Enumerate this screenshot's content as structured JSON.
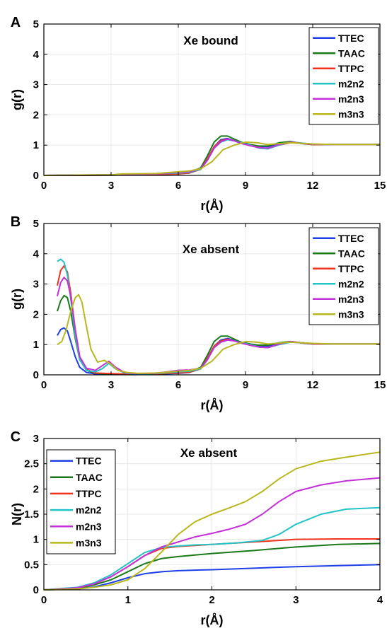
{
  "figure": {
    "colors": {
      "TTEC": "#1f3fe6",
      "TAAC": "#1a7a1a",
      "TTPC": "#f0321e",
      "m2n2": "#21c4c4",
      "m2n3": "#c430d8",
      "m3n3": "#b8b81e"
    }
  },
  "chart_data": [
    {
      "panel_label": "A",
      "type": "line",
      "title": "Xe bound",
      "xlabel": "r(Å)",
      "ylabel": "g(r)",
      "xlim": [
        0,
        15
      ],
      "ylim": [
        0,
        5
      ],
      "xticks": [
        0,
        3,
        6,
        9,
        12,
        15
      ],
      "yticks": [
        0,
        1,
        2,
        3,
        4,
        5
      ],
      "grid": true,
      "legend_position": "top-right",
      "series": [
        {
          "name": "TTEC",
          "x": [
            0,
            3,
            5,
            6,
            6.5,
            7,
            7.3,
            7.6,
            7.9,
            8.2,
            8.5,
            8.8,
            9.2,
            9.6,
            10,
            10.5,
            11,
            11.5,
            12,
            13,
            15
          ],
          "y": [
            0,
            0.01,
            0.03,
            0.05,
            0.08,
            0.2,
            0.55,
            0.95,
            1.18,
            1.22,
            1.15,
            1.08,
            1.02,
            0.96,
            0.95,
            1.05,
            1.12,
            1.05,
            1.02,
            1.02,
            1.02
          ]
        },
        {
          "name": "TAAC",
          "x": [
            0,
            3,
            5,
            6,
            6.5,
            7,
            7.3,
            7.6,
            7.9,
            8.2,
            8.5,
            8.8,
            9.2,
            9.6,
            10,
            10.5,
            11,
            11.5,
            12,
            13,
            15
          ],
          "y": [
            0,
            0.01,
            0.03,
            0.06,
            0.1,
            0.25,
            0.65,
            1.1,
            1.3,
            1.3,
            1.2,
            1.1,
            1.02,
            0.97,
            0.97,
            1.08,
            1.12,
            1.06,
            1.02,
            1.02,
            1.02
          ]
        },
        {
          "name": "TTPC",
          "x": [
            0,
            3,
            5,
            6,
            6.5,
            7,
            7.3,
            7.6,
            7.9,
            8.2,
            8.5,
            8.8,
            9.2,
            9.6,
            10,
            10.5,
            11,
            11.5,
            12,
            13,
            15
          ],
          "y": [
            0,
            0.01,
            0.03,
            0.05,
            0.08,
            0.2,
            0.55,
            0.95,
            1.15,
            1.2,
            1.14,
            1.08,
            1.0,
            0.92,
            0.88,
            1.0,
            1.08,
            1.06,
            1.02,
            1.02,
            1.02
          ]
        },
        {
          "name": "m2n2",
          "x": [
            0,
            3,
            5,
            6,
            6.5,
            7,
            7.3,
            7.6,
            7.9,
            8.2,
            8.5,
            8.8,
            9.2,
            9.6,
            10,
            10.5,
            11,
            11.5,
            12,
            13,
            15
          ],
          "y": [
            0,
            0.02,
            0.05,
            0.08,
            0.1,
            0.2,
            0.5,
            0.9,
            1.1,
            1.18,
            1.14,
            1.08,
            1.0,
            0.9,
            0.88,
            1.0,
            1.1,
            1.07,
            1.03,
            1.02,
            1.02
          ]
        },
        {
          "name": "m2n3",
          "x": [
            0,
            3,
            5,
            6,
            6.5,
            7,
            7.3,
            7.6,
            7.9,
            8.2,
            8.5,
            8.8,
            9.2,
            9.6,
            10,
            10.5,
            11,
            11.5,
            12,
            13,
            15
          ],
          "y": [
            0,
            0.02,
            0.05,
            0.1,
            0.12,
            0.22,
            0.5,
            0.9,
            1.12,
            1.2,
            1.14,
            1.06,
            0.98,
            0.92,
            0.9,
            1.02,
            1.1,
            1.06,
            1.03,
            1.02,
            1.02
          ]
        },
        {
          "name": "m3n3",
          "x": [
            0,
            3,
            3.5,
            5,
            6,
            6.5,
            7,
            7.5,
            8,
            8.5,
            9,
            9.5,
            10,
            10.5,
            11,
            12,
            13,
            15
          ],
          "y": [
            0,
            0.02,
            0.05,
            0.06,
            0.12,
            0.15,
            0.22,
            0.45,
            0.85,
            1.0,
            1.1,
            1.08,
            1.02,
            1.05,
            1.08,
            1.04,
            1.02,
            1.02
          ]
        }
      ]
    },
    {
      "panel_label": "B",
      "type": "line",
      "title": "Xe absent",
      "xlabel": "r(Å)",
      "ylabel": "g(r)",
      "xlim": [
        0,
        15
      ],
      "ylim": [
        0,
        5
      ],
      "xticks": [
        0,
        3,
        6,
        9,
        12,
        15
      ],
      "yticks": [
        0,
        1,
        2,
        3,
        4,
        5
      ],
      "grid": true,
      "legend_position": "top-right",
      "series": [
        {
          "name": "TTEC",
          "x": [
            0.6,
            0.75,
            0.9,
            1.05,
            1.2,
            1.4,
            1.6,
            1.9,
            2.3,
            3,
            4,
            5,
            6,
            6.5,
            7,
            7.3,
            7.6,
            7.9,
            8.2,
            8.5,
            8.8,
            9.2,
            9.6,
            10,
            10.5,
            11,
            11.5,
            12,
            13,
            15
          ],
          "y": [
            1.3,
            1.5,
            1.55,
            1.45,
            1.1,
            0.6,
            0.25,
            0.08,
            0.03,
            0.02,
            0.01,
            0.02,
            0.05,
            0.08,
            0.2,
            0.55,
            0.95,
            1.15,
            1.2,
            1.14,
            1.08,
            1.02,
            0.96,
            0.95,
            1.04,
            1.1,
            1.05,
            1.02,
            1.02,
            1.02
          ]
        },
        {
          "name": "TAAC",
          "x": [
            0.6,
            0.75,
            0.9,
            1.05,
            1.2,
            1.4,
            1.6,
            1.9,
            2.3,
            3,
            4,
            5,
            6,
            6.5,
            7,
            7.3,
            7.6,
            7.9,
            8.2,
            8.5,
            8.8,
            9.2,
            9.6,
            10,
            10.5,
            11,
            11.5,
            12,
            13,
            15
          ],
          "y": [
            2.1,
            2.45,
            2.62,
            2.55,
            2.1,
            1.2,
            0.5,
            0.15,
            0.05,
            0.03,
            0.02,
            0.03,
            0.07,
            0.1,
            0.25,
            0.65,
            1.1,
            1.28,
            1.28,
            1.18,
            1.08,
            1.02,
            0.98,
            0.98,
            1.06,
            1.1,
            1.06,
            1.03,
            1.02,
            1.02
          ]
        },
        {
          "name": "TTPC",
          "x": [
            0.6,
            0.75,
            0.9,
            1.05,
            1.2,
            1.4,
            1.6,
            1.9,
            2.3,
            3,
            4,
            5,
            6,
            6.5,
            7,
            7.3,
            7.6,
            7.9,
            8.2,
            8.5,
            8.8,
            9.2,
            9.6,
            10,
            10.5,
            11,
            11.5,
            12,
            13,
            15
          ],
          "y": [
            2.95,
            3.45,
            3.6,
            3.4,
            2.7,
            1.5,
            0.6,
            0.18,
            0.06,
            0.04,
            0.02,
            0.03,
            0.06,
            0.09,
            0.2,
            0.55,
            0.95,
            1.12,
            1.18,
            1.12,
            1.06,
            0.98,
            0.92,
            0.9,
            1.0,
            1.08,
            1.06,
            1.02,
            1.02,
            1.02
          ]
        },
        {
          "name": "m2n2",
          "x": [
            0.6,
            0.75,
            0.9,
            1.05,
            1.2,
            1.4,
            1.6,
            1.9,
            2.3,
            2.6,
            2.9,
            3.2,
            3.6,
            4,
            5,
            6,
            6.5,
            7,
            7.3,
            7.6,
            7.9,
            8.2,
            8.5,
            8.8,
            9.2,
            9.6,
            10,
            10.5,
            11,
            11.5,
            12,
            13,
            15
          ],
          "y": [
            3.75,
            3.82,
            3.72,
            3.3,
            2.5,
            1.3,
            0.5,
            0.15,
            0.1,
            0.2,
            0.38,
            0.2,
            0.06,
            0.03,
            0.04,
            0.1,
            0.12,
            0.2,
            0.5,
            0.9,
            1.08,
            1.15,
            1.12,
            1.06,
            1.0,
            0.92,
            0.9,
            1.0,
            1.08,
            1.06,
            1.03,
            1.02,
            1.02
          ]
        },
        {
          "name": "m2n3",
          "x": [
            0.6,
            0.75,
            0.9,
            1.05,
            1.2,
            1.4,
            1.6,
            1.9,
            2.3,
            2.6,
            2.9,
            3.2,
            3.6,
            4,
            5,
            6,
            6.5,
            7,
            7.3,
            7.6,
            7.9,
            8.2,
            8.5,
            8.8,
            9.2,
            9.6,
            10,
            10.5,
            11,
            11.5,
            12,
            13,
            15
          ],
          "y": [
            2.6,
            3.05,
            3.22,
            3.1,
            2.6,
            1.5,
            0.6,
            0.22,
            0.15,
            0.3,
            0.45,
            0.25,
            0.08,
            0.04,
            0.05,
            0.15,
            0.16,
            0.22,
            0.5,
            0.9,
            1.08,
            1.15,
            1.12,
            1.05,
            0.98,
            0.92,
            0.9,
            1.02,
            1.1,
            1.06,
            1.03,
            1.02,
            1.02
          ]
        },
        {
          "name": "m3n3",
          "x": [
            0.6,
            0.8,
            1.0,
            1.2,
            1.4,
            1.55,
            1.7,
            1.9,
            2.1,
            2.4,
            2.7,
            3.0,
            3.3,
            3.7,
            4.2,
            5,
            6,
            6.5,
            7,
            7.5,
            8,
            8.5,
            9,
            9.5,
            10,
            10.5,
            11,
            12,
            13,
            15
          ],
          "y": [
            1.0,
            1.1,
            1.5,
            2.1,
            2.55,
            2.65,
            2.4,
            1.6,
            0.85,
            0.42,
            0.48,
            0.35,
            0.15,
            0.08,
            0.05,
            0.06,
            0.12,
            0.15,
            0.22,
            0.45,
            0.85,
            1.0,
            1.1,
            1.08,
            1.02,
            1.05,
            1.08,
            1.04,
            1.02,
            1.02
          ]
        }
      ]
    },
    {
      "panel_label": "C",
      "type": "line",
      "title": "Xe absent",
      "xlabel": "r(Å)",
      "ylabel": "N(r)",
      "xlim": [
        0,
        4
      ],
      "ylim": [
        0,
        3
      ],
      "xticks": [
        0,
        1,
        2,
        3,
        4
      ],
      "yticks": [
        0,
        0.5,
        1,
        1.5,
        2,
        2.5,
        3
      ],
      "grid": true,
      "legend_position": "top-left",
      "series": [
        {
          "name": "TTEC",
          "x": [
            0,
            0.4,
            0.6,
            0.8,
            1.0,
            1.2,
            1.4,
            1.6,
            1.8,
            2.0,
            2.5,
            3.0,
            3.5,
            4.0
          ],
          "y": [
            0,
            0.02,
            0.06,
            0.14,
            0.24,
            0.32,
            0.36,
            0.38,
            0.39,
            0.4,
            0.43,
            0.46,
            0.48,
            0.5
          ]
        },
        {
          "name": "TAAC",
          "x": [
            0,
            0.4,
            0.6,
            0.8,
            1.0,
            1.2,
            1.4,
            1.6,
            1.8,
            2.0,
            2.5,
            3.0,
            3.5,
            4.0
          ],
          "y": [
            0,
            0.03,
            0.1,
            0.2,
            0.36,
            0.52,
            0.62,
            0.66,
            0.69,
            0.72,
            0.78,
            0.85,
            0.9,
            0.92
          ]
        },
        {
          "name": "TTPC",
          "x": [
            0,
            0.4,
            0.6,
            0.8,
            1.0,
            1.2,
            1.4,
            1.6,
            1.8,
            2.0,
            2.5,
            3.0,
            3.5,
            4.0
          ],
          "y": [
            0,
            0.04,
            0.12,
            0.26,
            0.46,
            0.68,
            0.82,
            0.86,
            0.88,
            0.9,
            0.95,
            1.0,
            1.01,
            1.01
          ]
        },
        {
          "name": "m2n2",
          "x": [
            0,
            0.4,
            0.6,
            0.8,
            1.0,
            1.2,
            1.4,
            1.6,
            1.8,
            2.0,
            2.3,
            2.6,
            2.8,
            3.0,
            3.3,
            3.6,
            4.0
          ],
          "y": [
            0,
            0.05,
            0.14,
            0.3,
            0.52,
            0.74,
            0.84,
            0.87,
            0.89,
            0.9,
            0.93,
            0.98,
            1.1,
            1.3,
            1.5,
            1.6,
            1.63
          ]
        },
        {
          "name": "m2n3",
          "x": [
            0,
            0.4,
            0.6,
            0.8,
            1.0,
            1.2,
            1.4,
            1.6,
            1.8,
            2.0,
            2.2,
            2.4,
            2.6,
            2.8,
            3.0,
            3.3,
            3.6,
            4.0
          ],
          "y": [
            0,
            0.04,
            0.12,
            0.26,
            0.46,
            0.68,
            0.85,
            0.95,
            1.05,
            1.12,
            1.2,
            1.3,
            1.5,
            1.75,
            1.95,
            2.08,
            2.16,
            2.22
          ]
        },
        {
          "name": "m3n3",
          "x": [
            0,
            0.4,
            0.6,
            0.8,
            1.0,
            1.2,
            1.4,
            1.6,
            1.8,
            2.0,
            2.2,
            2.4,
            2.6,
            2.8,
            3.0,
            3.3,
            3.6,
            4.0
          ],
          "y": [
            0,
            0.02,
            0.05,
            0.1,
            0.2,
            0.42,
            0.75,
            1.1,
            1.35,
            1.5,
            1.62,
            1.75,
            1.95,
            2.2,
            2.4,
            2.55,
            2.63,
            2.73
          ]
        }
      ]
    }
  ]
}
